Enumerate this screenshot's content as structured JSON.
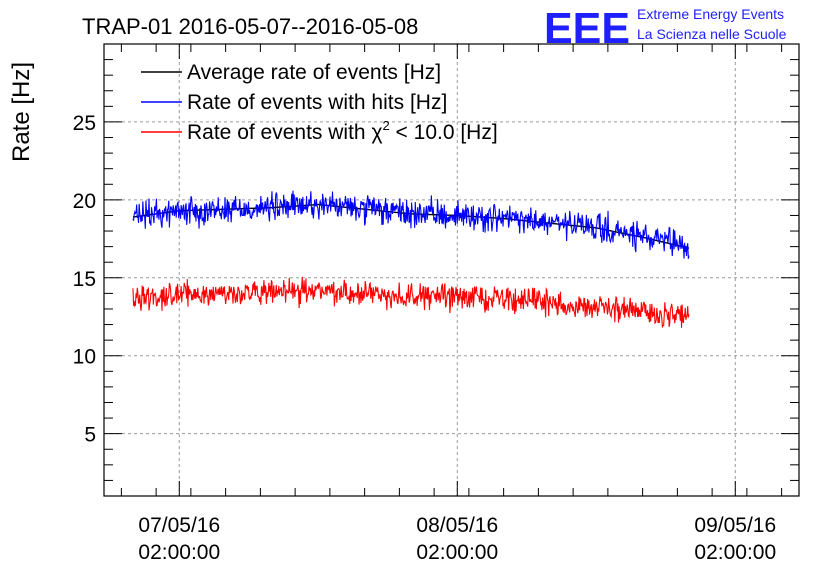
{
  "chart_data": {
    "type": "line",
    "title": "TRAP-01 2016-05-07--2016-05-08",
    "ylabel": "Rate [Hz]",
    "xlabel": "",
    "ylim": [
      1,
      30
    ],
    "y_ticks": [
      5,
      10,
      15,
      20,
      25
    ],
    "x_range_hours": [
      -10.5,
      49.5
    ],
    "x_ticks": [
      {
        "hours": -4,
        "date": "07/05/16",
        "time": "02:00:00"
      },
      {
        "hours": 20,
        "date": "08/05/16",
        "time": "02:00:00"
      },
      {
        "hours": 44,
        "date": "09/05/16",
        "time": "02:00:00"
      }
    ],
    "grid": true,
    "legend_position": "top-left",
    "legend": [
      {
        "label": "Average rate of events [Hz]",
        "color": "#000000"
      },
      {
        "label": "Rate of events with hits [Hz]",
        "color": "#0000ff"
      },
      {
        "label_prefix": "Rate of events with ",
        "chi": "χ",
        "sup": "2",
        "label_suffix": " < 10.0 [Hz]",
        "color": "#ff0000"
      }
    ],
    "series": [
      {
        "name": "Average rate of events [Hz]",
        "color": "#000000",
        "x": [
          -8,
          -4,
          0,
          4,
          8,
          12,
          16,
          20,
          24,
          28,
          32,
          36,
          40
        ],
        "values": [
          18.9,
          19.3,
          19.4,
          19.5,
          19.7,
          19.4,
          19.1,
          19.0,
          18.8,
          18.5,
          18.2,
          17.6,
          16.9
        ]
      },
      {
        "name": "Rate of events with hits [Hz]",
        "color": "#0000ff",
        "x": [
          -8,
          -4,
          0,
          4,
          8,
          12,
          16,
          20,
          24,
          28,
          32,
          36,
          40
        ],
        "values": [
          18.9,
          19.3,
          19.4,
          19.5,
          19.7,
          19.4,
          19.1,
          19.0,
          18.8,
          18.5,
          18.2,
          17.6,
          16.9
        ],
        "noise": 0.75
      },
      {
        "name": "Rate of events with chi2 < 10.0 [Hz]",
        "color": "#ff0000",
        "x": [
          -8,
          -4,
          0,
          4,
          8,
          12,
          16,
          20,
          24,
          28,
          32,
          36,
          40
        ],
        "values": [
          13.8,
          13.9,
          14.0,
          14.0,
          14.2,
          14.0,
          13.8,
          13.8,
          13.7,
          13.4,
          13.1,
          12.8,
          12.5
        ],
        "noise": 0.65
      }
    ]
  },
  "logo": {
    "mark": "EEE",
    "line1": "Extreme Energy Events",
    "line2": "La Scienza nelle Scuole"
  }
}
